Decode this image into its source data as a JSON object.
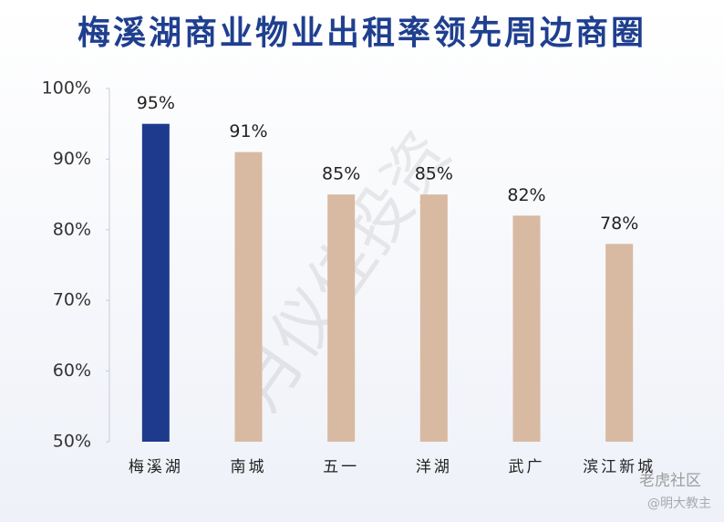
{
  "chart_data": {
    "type": "bar",
    "title": "梅溪湖商业物业出租率领先周边商圈",
    "categories": [
      "梅溪湖",
      "南城",
      "五一",
      "洋湖",
      "武广",
      "滨江新城"
    ],
    "values": [
      95,
      91,
      85,
      85,
      82,
      78
    ],
    "value_labels": [
      "95%",
      "91%",
      "85%",
      "85%",
      "82%",
      "78%"
    ],
    "colors": [
      "#1d3a8c",
      "#d8b9a2",
      "#d8b9a2",
      "#d8b9a2",
      "#d8b9a2",
      "#d8b9a2"
    ],
    "ylim": [
      50,
      100
    ],
    "yticks": [
      {
        "value": 50,
        "label": "50%"
      },
      {
        "value": 60,
        "label": "60%"
      },
      {
        "value": 70,
        "label": "70%"
      },
      {
        "value": 80,
        "label": "80%"
      },
      {
        "value": 90,
        "label": "90%"
      },
      {
        "value": 100,
        "label": "100%"
      }
    ],
    "grid": false
  },
  "watermarks": [
    "月仪佳投资",
    "老虎社区",
    "@明大教主"
  ]
}
